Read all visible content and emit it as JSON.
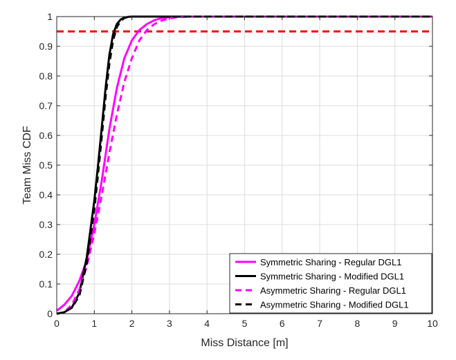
{
  "chart_data": {
    "type": "line",
    "xlabel": "Miss Distance [m]",
    "ylabel": "Team Miss CDF",
    "xlim": [
      0,
      10
    ],
    "ylim": [
      0,
      1
    ],
    "xticks": [
      "0",
      "1",
      "2",
      "3",
      "4",
      "5",
      "6",
      "7",
      "8",
      "9",
      "10"
    ],
    "yticks": [
      "0",
      "0.1",
      "0.2",
      "0.3",
      "0.4",
      "0.5",
      "0.6",
      "0.7",
      "0.8",
      "0.9",
      "1"
    ],
    "grid": true,
    "legend_position": "bottom-right",
    "threshold": {
      "y": 0.95,
      "color": "#ff0000",
      "style": "dashed"
    },
    "series": [
      {
        "name": "Symmetric Sharing - Regular DGL1",
        "color": "#ff00ff",
        "style": "solid",
        "x": [
          0,
          0.2,
          0.4,
          0.6,
          0.8,
          1.0,
          1.2,
          1.4,
          1.6,
          1.8,
          2.0,
          2.2,
          2.4,
          2.6,
          2.8,
          3.0,
          3.3,
          10
        ],
        "y": [
          0.01,
          0.03,
          0.06,
          0.11,
          0.18,
          0.3,
          0.45,
          0.62,
          0.76,
          0.86,
          0.92,
          0.955,
          0.975,
          0.988,
          0.995,
          0.998,
          1.0,
          1.0
        ]
      },
      {
        "name": "Symmetric Sharing - Modified DGL1",
        "color": "#000000",
        "style": "solid",
        "x": [
          0,
          0.2,
          0.4,
          0.6,
          0.8,
          1.0,
          1.1,
          1.2,
          1.3,
          1.4,
          1.5,
          1.6,
          1.7,
          1.8,
          1.9,
          2.0,
          2.2,
          10
        ],
        "y": [
          0.0,
          0.005,
          0.02,
          0.07,
          0.19,
          0.38,
          0.5,
          0.63,
          0.76,
          0.87,
          0.94,
          0.975,
          0.99,
          0.997,
          0.999,
          1.0,
          1.0,
          1.0
        ]
      },
      {
        "name": "Asymmetric Sharing - Regular DGL1",
        "color": "#ff00ff",
        "style": "dashed",
        "x": [
          0,
          0.2,
          0.4,
          0.6,
          0.8,
          1.0,
          1.2,
          1.4,
          1.6,
          1.8,
          2.0,
          2.2,
          2.4,
          2.6,
          2.8,
          3.0,
          3.2,
          3.5,
          10
        ],
        "y": [
          0.0,
          0.005,
          0.03,
          0.08,
          0.16,
          0.27,
          0.4,
          0.54,
          0.67,
          0.78,
          0.86,
          0.92,
          0.955,
          0.975,
          0.987,
          0.994,
          0.998,
          1.0,
          1.0
        ]
      },
      {
        "name": "Asymmetric Sharing - Modified DGL1",
        "color": "#000000",
        "style": "dashed",
        "x": [
          0,
          0.2,
          0.4,
          0.6,
          0.8,
          1.0,
          1.1,
          1.2,
          1.3,
          1.4,
          1.5,
          1.6,
          1.7,
          1.8,
          1.9,
          2.0,
          2.2,
          10
        ],
        "y": [
          0.0,
          0.005,
          0.02,
          0.06,
          0.17,
          0.35,
          0.47,
          0.6,
          0.73,
          0.84,
          0.92,
          0.965,
          0.985,
          0.995,
          0.999,
          1.0,
          1.0,
          1.0
        ]
      }
    ]
  }
}
